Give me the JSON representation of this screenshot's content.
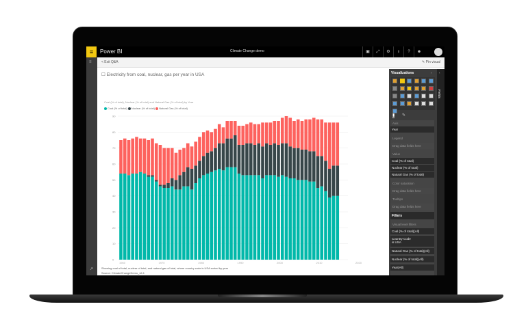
{
  "app": {
    "brand": "Power BI",
    "title": "Climate Change demo",
    "menu_icon": "hamburger-icon"
  },
  "topbar_icons": [
    "chat-icon",
    "fullscreen-icon",
    "gear-icon",
    "download-icon",
    "help-icon",
    "smiley-icon"
  ],
  "subbar": {
    "back": "< Exit Q&A",
    "pin": "Pin visual"
  },
  "question": "Electricity from coal, nuclear, gas per year in USA",
  "footer": {
    "caption": "Showing coal of total, nuclear of total, and natural gas of total, where country code is USA sorted by year",
    "source": "Source: ClimateChangeDemo_v6.1"
  },
  "viz_panel": {
    "title": "Visualizations",
    "fields_tab": "Fields",
    "axis_label": "Axis",
    "axis_value": "Year",
    "legend_label": "Legend",
    "drop": "Drag data fields here",
    "value_label": "Value",
    "values": [
      "Coal (% of total)",
      "Nuclear (% of total)",
      "Natural Gas (% of total)"
    ],
    "color_sat_label": "Color saturation",
    "tooltips_label": "Tooltips",
    "filters_title": "Filters",
    "visual_filters": "Visual level filters",
    "filters": [
      "Coal (% of total)(All)",
      "Country Code",
      "is USA",
      "Natural Gas (% of total)(All)",
      "Nuclear (% of total)(All)",
      "Year(All)"
    ]
  },
  "colors": {
    "coal": "#01B8AA",
    "nuclear": "#374649",
    "gas": "#FD625E",
    "accent": "#F2C811"
  },
  "chart_data": {
    "type": "bar",
    "stacked": true,
    "title": "Coal (% of total), Nuclear (% of total) and Natural Gas (% of total) by Year",
    "legend_position": "top-left",
    "grid": true,
    "ylim": [
      0,
      90
    ],
    "yticks": [
      0,
      10,
      20,
      30,
      40,
      50,
      60,
      70,
      80,
      90
    ],
    "xticks": [
      1960,
      1970,
      1980,
      1990,
      2000,
      2010,
      2020
    ],
    "x_start": 1960,
    "series": [
      {
        "name": "Coal (% of total)",
        "values": [
          54,
          54,
          53,
          54,
          54,
          55,
          54,
          52,
          52,
          49,
          46,
          45,
          45,
          46,
          44,
          44,
          46,
          46,
          44,
          48,
          51,
          53,
          54,
          55,
          56,
          57,
          56,
          58,
          58,
          58,
          54,
          53,
          53,
          53,
          53,
          53,
          51,
          53,
          53,
          53,
          52,
          53,
          52,
          51,
          51,
          50,
          50,
          50,
          49,
          49,
          45,
          46,
          43,
          39,
          40,
          40
        ]
      },
      {
        "name": "Nuclear (% of total)",
        "values": [
          0,
          0,
          0,
          0,
          0,
          0,
          0,
          1,
          1,
          1,
          1,
          2,
          3,
          5,
          6,
          9,
          9,
          12,
          13,
          11,
          11,
          12,
          13,
          13,
          14,
          16,
          17,
          18,
          18,
          20,
          18,
          19,
          20,
          20,
          19,
          20,
          20,
          20,
          19,
          20,
          20,
          20,
          21,
          20,
          19,
          20,
          19,
          19,
          19,
          19,
          20,
          19,
          19,
          18,
          19,
          19
        ]
      },
      {
        "name": "Natural Gas (% of total)",
        "values": [
          21,
          22,
          22,
          22,
          23,
          21,
          22,
          22,
          23,
          23,
          25,
          23,
          22,
          19,
          17,
          16,
          15,
          15,
          14,
          15,
          15,
          15,
          14,
          12,
          12,
          12,
          10,
          11,
          11,
          9,
          12,
          12,
          12,
          13,
          13,
          12,
          15,
          13,
          14,
          14,
          15,
          16,
          17,
          18,
          17,
          18,
          18,
          19,
          20,
          21,
          23,
          23,
          24,
          29,
          27,
          27
        ]
      }
    ]
  }
}
